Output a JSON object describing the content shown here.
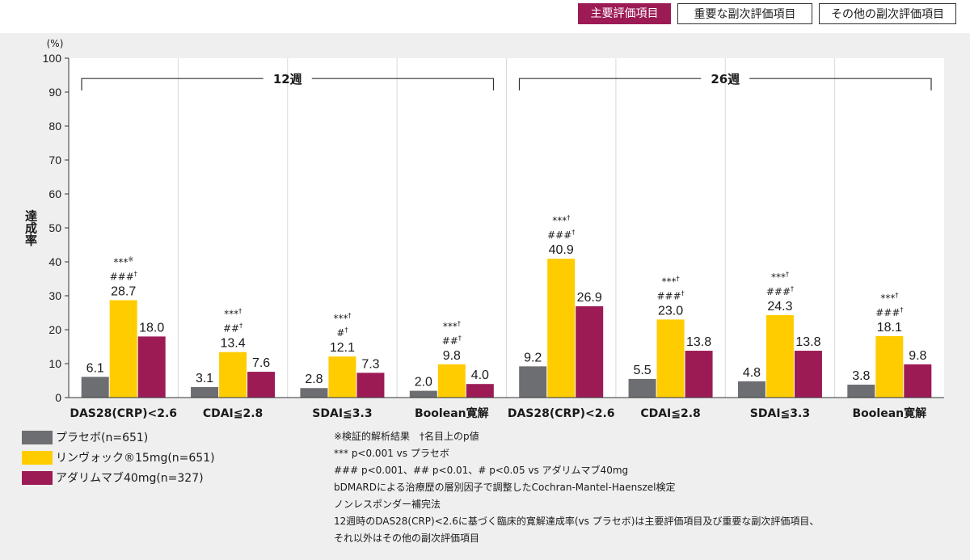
{
  "header": {
    "tabs": [
      {
        "label": "主要評価項目",
        "active": true
      },
      {
        "label": "重要な副次評価項目",
        "active": false
      },
      {
        "label": "その他の副次評価項目",
        "active": false
      }
    ]
  },
  "colors": {
    "placebo": "#6d6e71",
    "upadacitinib": "#ffcc00",
    "adalimumab": "#9c1b55",
    "accent": "#9c1b55"
  },
  "chart_data": {
    "type": "bar",
    "ylabel": "達成率",
    "yunit": "(%)",
    "ylim": [
      0,
      100
    ],
    "yticks": [
      "0",
      "10",
      "20",
      "30",
      "40",
      "50",
      "60",
      "70",
      "80",
      "90",
      "100"
    ],
    "grid": false,
    "categories": [
      "DAS28(CRP)<2.6",
      "CDAI≦2.8",
      "SDAI≦3.3",
      "Boolean寛解",
      "DAS28(CRP)<2.6",
      "CDAI≦2.8",
      "SDAI≦3.3",
      "Boolean寛解"
    ],
    "groups": [
      {
        "label": "12週",
        "categories": [
          0,
          1,
          2,
          3
        ]
      },
      {
        "label": "26週",
        "categories": [
          4,
          5,
          6,
          7
        ]
      }
    ],
    "series": [
      {
        "name": "プラセボ(n=651)",
        "values": [
          6.1,
          3.1,
          2.8,
          2.0,
          9.2,
          5.5,
          4.8,
          3.8
        ],
        "labels": [
          "6.1",
          "3.1",
          "2.8",
          "2.0",
          "9.2",
          "5.5",
          "4.8",
          "3.8"
        ]
      },
      {
        "name": "リンヴォック®15mg(n=651)",
        "values": [
          28.7,
          13.4,
          12.1,
          9.8,
          40.9,
          23.0,
          24.3,
          18.1
        ],
        "labels": [
          "28.7",
          "13.4",
          "12.1",
          "9.8",
          "40.9",
          "23.0",
          "24.3",
          "18.1"
        ]
      },
      {
        "name": "アダリムマブ40mg(n=327)",
        "values": [
          18.0,
          7.6,
          7.3,
          4.0,
          26.9,
          13.8,
          13.8,
          9.8
        ],
        "labels": [
          "18.0",
          "7.6",
          "7.3",
          "4.0",
          "26.9",
          "13.8",
          "13.8",
          "9.8"
        ]
      }
    ],
    "annotations": [
      [
        "***",
        "※",
        "###",
        "†"
      ],
      [
        "***",
        "†",
        "##",
        "†"
      ],
      [
        "***",
        "†",
        "#",
        "†"
      ],
      [
        "***",
        "†",
        "##",
        "†"
      ],
      [
        "***",
        "†",
        "###",
        "†"
      ],
      [
        "***",
        "†",
        "###",
        "†"
      ],
      [
        "***",
        "†",
        "###",
        "†"
      ],
      [
        "***",
        "†",
        "###",
        "†"
      ]
    ]
  },
  "notes": [
    "※検証的解析結果　†名目上のp値",
    "*** p<0.001 vs プラセボ",
    "### p<0.001、## p<0.01、# p<0.05 vs アダリムマブ40mg",
    "bDMARDによる治療歴の層別因子で調整したCochran-Mantel-Haenszel検定",
    "ノンレスポンダー補完法",
    "12週時のDAS28(CRP)<2.6に基づく臨床的寛解達成率(vs プラセボ)は主要評価項目及び重要な副次評価項目、",
    "それ以外はその他の副次評価項目"
  ]
}
